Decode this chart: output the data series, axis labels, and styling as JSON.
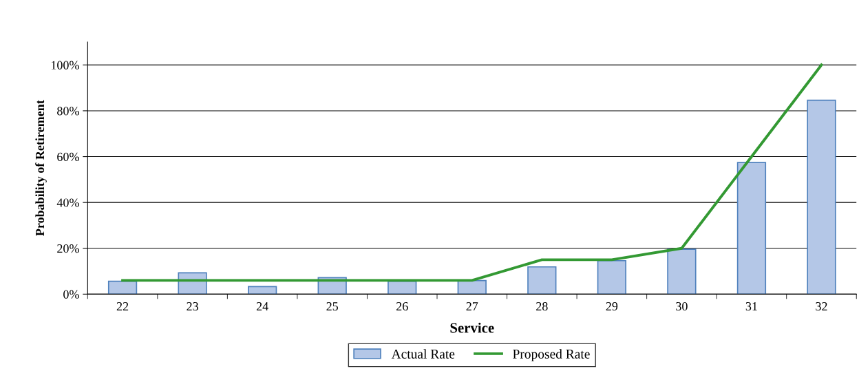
{
  "chart_data": {
    "type": "bar",
    "xlabel": "Service",
    "ylabel": "Probability of Retirement",
    "categories": [
      "22",
      "23",
      "24",
      "25",
      "26",
      "27",
      "28",
      "29",
      "30",
      "31",
      "32"
    ],
    "series": [
      {
        "name": "Actual Rate",
        "color": "#b4c7e7",
        "values": [
          5.6,
          9.3,
          3.3,
          7.2,
          5.6,
          5.9,
          11.9,
          14.6,
          19.6,
          57.4,
          84.6
        ]
      },
      {
        "name": "Proposed Rate",
        "type": "line",
        "color": "#339933",
        "values": [
          6,
          6,
          6,
          6,
          6,
          6,
          15,
          15,
          20,
          60,
          100
        ]
      }
    ],
    "ylim": [
      0,
      110
    ],
    "yticks": [
      {
        "value": 0,
        "label": "0%"
      },
      {
        "value": 20,
        "label": "20%"
      },
      {
        "value": 40,
        "label": "40%"
      },
      {
        "value": 60,
        "label": "60%"
      },
      {
        "value": 80,
        "label": "80%"
      },
      {
        "value": 100,
        "label": "100%"
      }
    ],
    "grid": "y",
    "legend": "bottom"
  }
}
